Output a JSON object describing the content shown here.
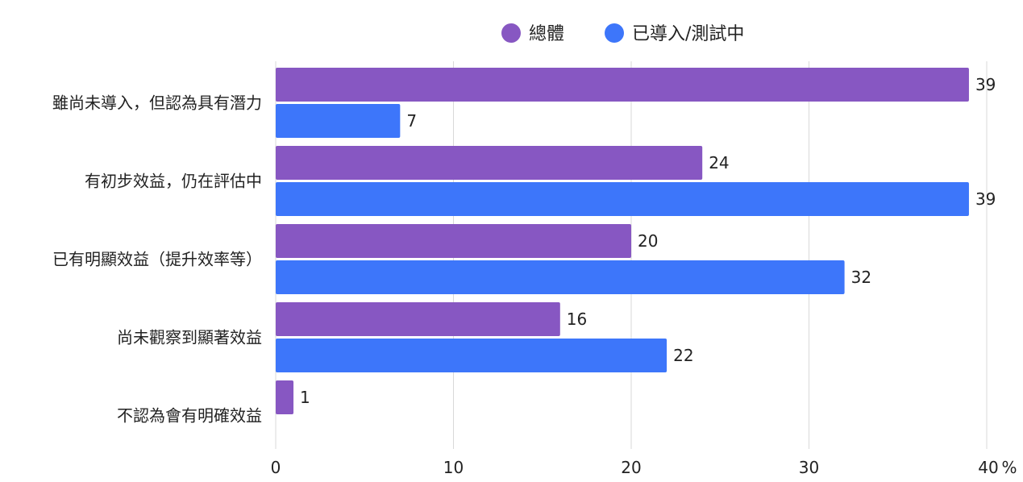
{
  "chart_data": {
    "type": "bar",
    "orientation": "horizontal",
    "categories": [
      "雖尚未導入，但認為具有潛力",
      "有初步效益，仍在評估中",
      "已有明顯效益（提升效率等）",
      "尚未觀察到顯著效益",
      "不認為會有明確效益"
    ],
    "series": [
      {
        "name": "總體",
        "color": "#8757c2",
        "values": [
          39,
          24,
          20,
          16,
          1
        ]
      },
      {
        "name": "已導入/測試中",
        "color": "#3d76fa",
        "values": [
          7,
          39,
          32,
          22,
          null
        ]
      }
    ],
    "xlim": [
      0,
      40
    ],
    "xticks": [
      "0",
      "10",
      "20",
      "30",
      "40"
    ],
    "x_unit": "%",
    "grid": true,
    "legend_position": "top"
  }
}
